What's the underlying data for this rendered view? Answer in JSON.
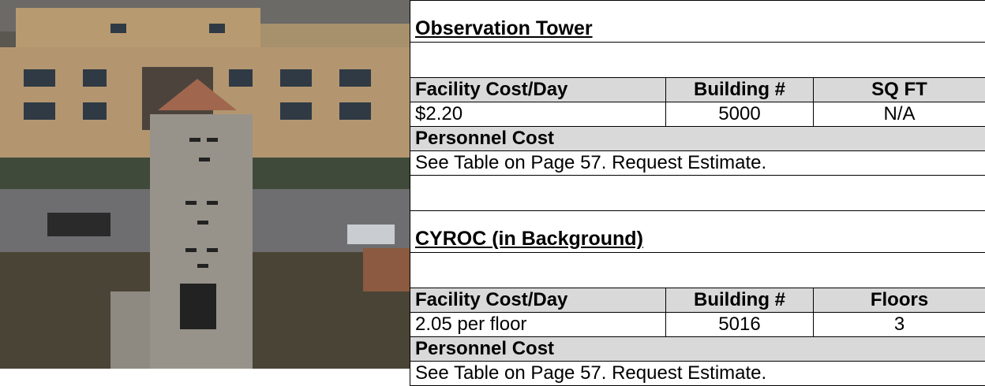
{
  "sections": [
    {
      "title": "Observation Tower",
      "headers": [
        "Facility Cost/Day",
        "Building #",
        "SQ FT"
      ],
      "values": [
        "$2.20",
        "5000",
        "N/A"
      ],
      "personnel_label": "Personnel Cost",
      "personnel_text": "See Table on Page 57. Request Estimate."
    },
    {
      "title": "CYROC (in Background)",
      "headers": [
        "Facility Cost/Day",
        "Building #",
        "Floors"
      ],
      "values": [
        "2.05 per floor",
        "5016",
        "3"
      ],
      "personnel_label": "Personnel Cost",
      "personnel_text": "See Table on Page 57. Request Estimate."
    }
  ]
}
